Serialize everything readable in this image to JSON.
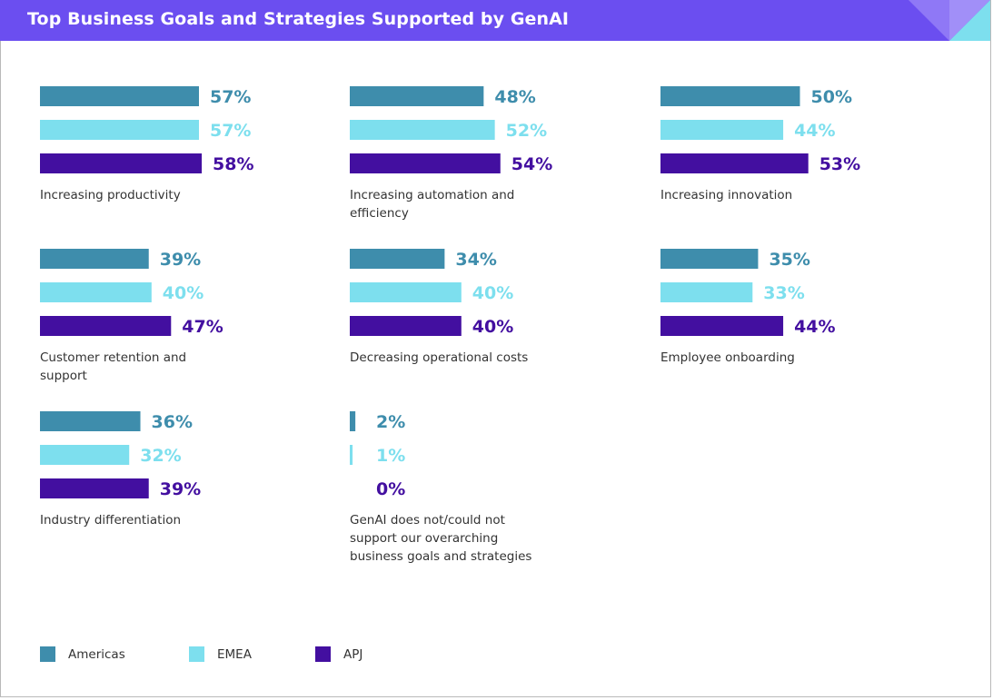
{
  "title": "Top Business Goals and Strategies Supported by GenAI",
  "colors": {
    "header_bg": "#6b4ef0",
    "americas": "#3e8dac",
    "emea": "#7ddfee",
    "apj": "#430fa0"
  },
  "chart_data": {
    "type": "bar",
    "orientation": "horizontal",
    "title": "Top Business Goals and Strategies Supported by GenAI",
    "unit": "%",
    "series_names": [
      "Americas",
      "EMEA",
      "APJ"
    ],
    "legend": [
      "Americas",
      "EMEA",
      "APJ"
    ],
    "groups": [
      {
        "label": [
          "Increasing productivity"
        ],
        "values": [
          57,
          57,
          58
        ],
        "labels": [
          "57%",
          "57%",
          "58%"
        ]
      },
      {
        "label": [
          "Increasing automation and",
          "efficiency"
        ],
        "values": [
          48,
          52,
          54
        ],
        "labels": [
          "48%",
          "52%",
          "54%"
        ]
      },
      {
        "label": [
          "Increasing innovation"
        ],
        "values": [
          50,
          44,
          53
        ],
        "labels": [
          "50%",
          "44%",
          "53%"
        ]
      },
      {
        "label": [
          "Customer retention and",
          "support"
        ],
        "values": [
          39,
          40,
          47
        ],
        "labels": [
          "39%",
          "40%",
          "47%"
        ]
      },
      {
        "label": [
          "Decreasing operational costs"
        ],
        "values": [
          34,
          40,
          40
        ],
        "labels": [
          "34%",
          "40%",
          "40%"
        ]
      },
      {
        "label": [
          "Employee onboarding"
        ],
        "values": [
          35,
          33,
          44
        ],
        "labels": [
          "35%",
          "33%",
          "44%"
        ]
      },
      {
        "label": [
          "Industry differentiation"
        ],
        "values": [
          36,
          32,
          39
        ],
        "labels": [
          "36%",
          "32%",
          "39%"
        ]
      },
      {
        "label": [
          "GenAI does not/could not",
          "support our overarching",
          "business goals and strategies"
        ],
        "values": [
          2,
          1,
          0
        ],
        "labels": [
          "2%",
          "1%",
          "0%"
        ]
      }
    ]
  }
}
